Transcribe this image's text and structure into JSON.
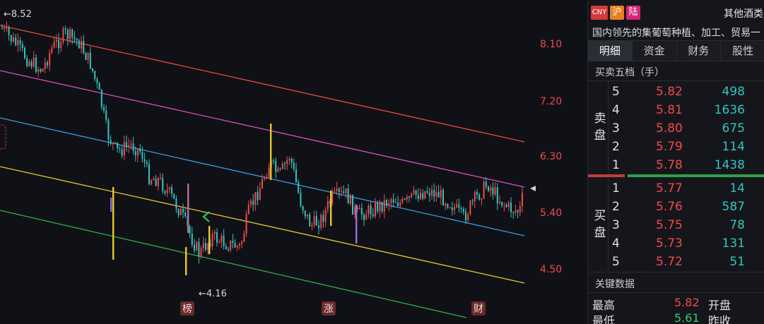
{
  "chart": {
    "y_axis_labels": [
      "8.10",
      "7.20",
      "6.30",
      "5.40",
      "4.50"
    ],
    "high_marker": "←8.52",
    "low_marker": "←4.16",
    "event_badges": [
      "榜",
      "涨",
      "财"
    ],
    "colors": {
      "up": "#f04a4a",
      "down": "#34c3c3",
      "axis_label": "#f04a4a",
      "channel_red": "#e8483f",
      "channel_magenta": "#d84fc0",
      "channel_blue": "#3a9ae0",
      "channel_yellow": "#e7c631",
      "channel_green": "#2fb04a",
      "badge_bg": "#6b2a2a"
    }
  },
  "panel": {
    "tags": [
      {
        "text": "CNY",
        "color": "#d63a3a"
      },
      {
        "text": "沪",
        "color": "#e8801f"
      },
      {
        "text": "陆",
        "color": "#d6247a"
      }
    ],
    "sector": "其他酒类",
    "description": "国内领先的集葡萄种植、加工、贸易一",
    "tabs": [
      "明细",
      "资金",
      "财务",
      "股性"
    ],
    "orderbook_title": "买卖五档（手）",
    "sell_label": "卖盘",
    "buy_label": "买盘",
    "asks": [
      {
        "level": "5",
        "price": "5.82",
        "vol": "498"
      },
      {
        "level": "4",
        "price": "5.81",
        "vol": "1636"
      },
      {
        "level": "3",
        "price": "5.80",
        "vol": "675"
      },
      {
        "level": "2",
        "price": "5.79",
        "vol": "114"
      },
      {
        "level": "1",
        "price": "5.78",
        "vol": "1438"
      }
    ],
    "bids": [
      {
        "level": "1",
        "price": "5.77",
        "vol": "14"
      },
      {
        "level": "2",
        "price": "5.76",
        "vol": "587"
      },
      {
        "level": "3",
        "price": "5.75",
        "vol": "78"
      },
      {
        "level": "4",
        "price": "5.73",
        "vol": "131"
      },
      {
        "level": "5",
        "price": "5.72",
        "vol": "51"
      }
    ],
    "key_data_title": "关键数据",
    "key_data": {
      "high_label": "最高",
      "high_value": "5.82",
      "open_label": "开盘",
      "low_label": "最低",
      "low_value": "5.61",
      "prev_label": "昨收"
    }
  }
}
